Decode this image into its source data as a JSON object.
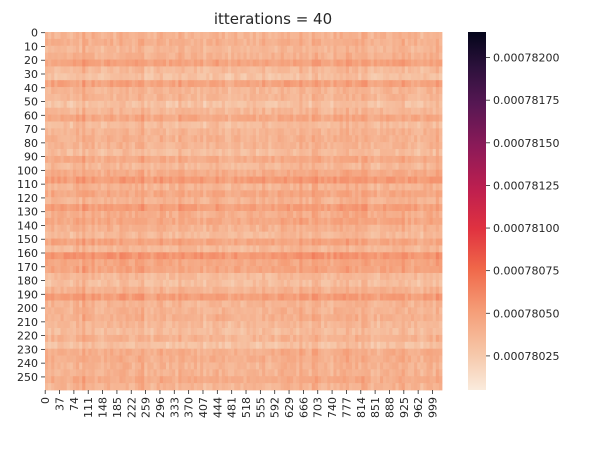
{
  "chart_data": {
    "type": "heatmap",
    "title": "itterations = 40",
    "xlabel": "",
    "ylabel": "",
    "rows": 260,
    "cols": 1024,
    "y_tick_labels": [
      "0",
      "10",
      "20",
      "30",
      "40",
      "50",
      "60",
      "70",
      "80",
      "90",
      "100",
      "110",
      "120",
      "130",
      "140",
      "150",
      "160",
      "170",
      "180",
      "190",
      "200",
      "210",
      "220",
      "230",
      "240",
      "250"
    ],
    "x_tick_labels": [
      "0",
      "37",
      "74",
      "111",
      "148",
      "185",
      "222",
      "259",
      "296",
      "333",
      "370",
      "407",
      "444",
      "481",
      "518",
      "555",
      "592",
      "629",
      "666",
      "703",
      "740",
      "777",
      "814",
      "851",
      "888",
      "925",
      "962",
      "999"
    ],
    "colorbar": {
      "vmin": 0.00078005,
      "vmax": 0.00078215,
      "tick_values": [
        0.00078025,
        0.0007805,
        0.00078075,
        0.000781,
        0.00078125,
        0.0007815,
        0.00078175,
        0.000782
      ],
      "tick_labels": [
        "0.00078025",
        "0.00078050",
        "0.00078075",
        "0.00078100",
        "0.00078125",
        "0.00078150",
        "0.00078175",
        "0.00078200"
      ],
      "colormap": "rocket_r"
    },
    "grid": false
  }
}
